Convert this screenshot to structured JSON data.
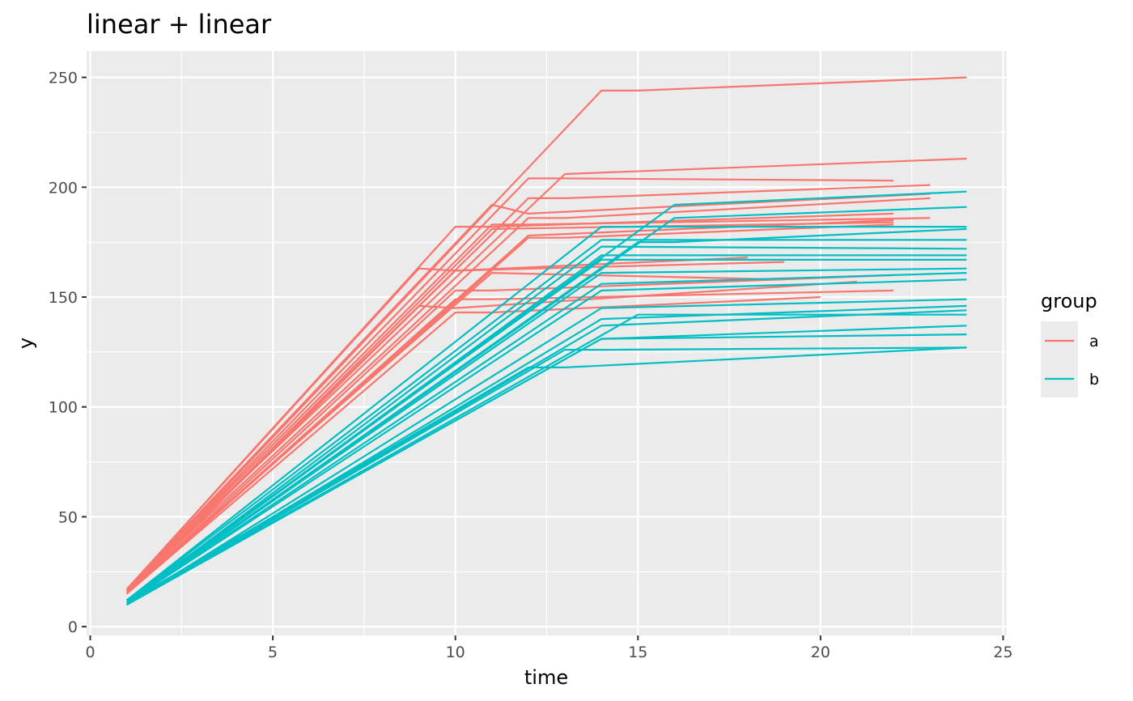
{
  "chart_data": {
    "type": "line",
    "title": "linear + linear",
    "xlabel": "time",
    "ylabel": "y",
    "xlim": [
      -0.1,
      25.1
    ],
    "ylim": [
      -4,
      262
    ],
    "x_ticks": [
      0,
      5,
      10,
      15,
      20,
      25
    ],
    "y_ticks": [
      0,
      50,
      100,
      150,
      200,
      250
    ],
    "grid": true,
    "legend": {
      "title": "group",
      "placement": "right",
      "entries": [
        {
          "label": "a",
          "color": "#F8766D"
        },
        {
          "label": "b",
          "color": "#00BFC4"
        }
      ]
    },
    "series": [
      {
        "group": "a",
        "x": [
          1,
          14,
          15,
          24
        ],
        "y": [
          16,
          244,
          244,
          250
        ]
      },
      {
        "group": "a",
        "x": [
          1,
          13,
          24
        ],
        "y": [
          17,
          206,
          213
        ]
      },
      {
        "group": "a",
        "x": [
          1,
          12,
          13,
          22
        ],
        "y": [
          16,
          204,
          204,
          203
        ]
      },
      {
        "group": "a",
        "x": [
          1,
          12,
          13,
          23
        ],
        "y": [
          15,
          195,
          195,
          201
        ]
      },
      {
        "group": "a",
        "x": [
          1,
          11,
          12,
          23
        ],
        "y": [
          17,
          192,
          188,
          197
        ]
      },
      {
        "group": "a",
        "x": [
          1,
          12,
          13,
          23
        ],
        "y": [
          16,
          186,
          186,
          195
        ]
      },
      {
        "group": "a",
        "x": [
          1,
          10,
          11,
          22
        ],
        "y": [
          17,
          182,
          182,
          188
        ]
      },
      {
        "group": "a",
        "x": [
          1,
          11,
          12,
          23
        ],
        "y": [
          16,
          183,
          183,
          186
        ]
      },
      {
        "group": "a",
        "x": [
          1,
          12,
          22
        ],
        "y": [
          15,
          178,
          185
        ]
      },
      {
        "group": "a",
        "x": [
          1,
          11,
          22
        ],
        "y": [
          15,
          181,
          184
        ]
      },
      {
        "group": "a",
        "x": [
          1,
          12,
          13,
          22
        ],
        "y": [
          15,
          177,
          177,
          183
        ]
      },
      {
        "group": "a",
        "x": [
          1,
          9,
          10,
          18
        ],
        "y": [
          17,
          163,
          162,
          168
        ]
      },
      {
        "group": "a",
        "x": [
          1,
          10,
          19
        ],
        "y": [
          16,
          162,
          166
        ]
      },
      {
        "group": "a",
        "x": [
          1,
          11,
          19
        ],
        "y": [
          16,
          161,
          158
        ]
      },
      {
        "group": "a",
        "x": [
          1,
          10,
          11,
          22
        ],
        "y": [
          15,
          153,
          153,
          160
        ]
      },
      {
        "group": "a",
        "x": [
          1,
          10,
          11,
          22
        ],
        "y": [
          15,
          149,
          149,
          153
        ]
      },
      {
        "group": "a",
        "x": [
          1,
          9,
          10,
          21
        ],
        "y": [
          16,
          146,
          145,
          157
        ]
      },
      {
        "group": "a",
        "x": [
          1,
          10,
          11,
          20
        ],
        "y": [
          15,
          143,
          143,
          150
        ]
      },
      {
        "group": "b",
        "x": [
          1,
          16,
          24
        ],
        "y": [
          11,
          192,
          198
        ]
      },
      {
        "group": "b",
        "x": [
          1,
          16,
          24
        ],
        "y": [
          11,
          186,
          191
        ]
      },
      {
        "group": "b",
        "x": [
          1,
          14,
          24
        ],
        "y": [
          12,
          182,
          182
        ]
      },
      {
        "group": "b",
        "x": [
          1,
          15,
          16,
          24
        ],
        "y": [
          11,
          175,
          175,
          181
        ]
      },
      {
        "group": "b",
        "x": [
          1,
          14,
          15,
          24
        ],
        "y": [
          12,
          176,
          176,
          176
        ]
      },
      {
        "group": "b",
        "x": [
          1,
          14,
          24
        ],
        "y": [
          11,
          173,
          172
        ]
      },
      {
        "group": "b",
        "x": [
          1,
          14,
          24
        ],
        "y": [
          11,
          169,
          169
        ]
      },
      {
        "group": "b",
        "x": [
          1,
          14,
          24
        ],
        "y": [
          12,
          167,
          167
        ]
      },
      {
        "group": "b",
        "x": [
          1,
          14,
          24
        ],
        "y": [
          11,
          161,
          163
        ]
      },
      {
        "group": "b",
        "x": [
          1,
          14,
          24
        ],
        "y": [
          11,
          156,
          161
        ]
      },
      {
        "group": "b",
        "x": [
          1,
          14,
          24
        ],
        "y": [
          11,
          153,
          158
        ]
      },
      {
        "group": "b",
        "x": [
          1,
          14,
          24
        ],
        "y": [
          10,
          145,
          149
        ]
      },
      {
        "group": "b",
        "x": [
          1,
          14,
          24
        ],
        "y": [
          10,
          140,
          146
        ]
      },
      {
        "group": "b",
        "x": [
          1,
          14,
          24
        ],
        "y": [
          10,
          137,
          144
        ]
      },
      {
        "group": "b",
        "x": [
          1,
          15,
          24
        ],
        "y": [
          10,
          142,
          142
        ]
      },
      {
        "group": "b",
        "x": [
          1,
          14,
          24
        ],
        "y": [
          10,
          131,
          137
        ]
      },
      {
        "group": "b",
        "x": [
          1,
          14,
          24
        ],
        "y": [
          10,
          131,
          133
        ]
      },
      {
        "group": "b",
        "x": [
          1,
          12,
          13,
          24
        ],
        "y": [
          11,
          118,
          118,
          127
        ]
      },
      {
        "group": "b",
        "x": [
          1,
          13,
          14,
          24
        ],
        "y": [
          10,
          126,
          126,
          127
        ]
      }
    ]
  }
}
